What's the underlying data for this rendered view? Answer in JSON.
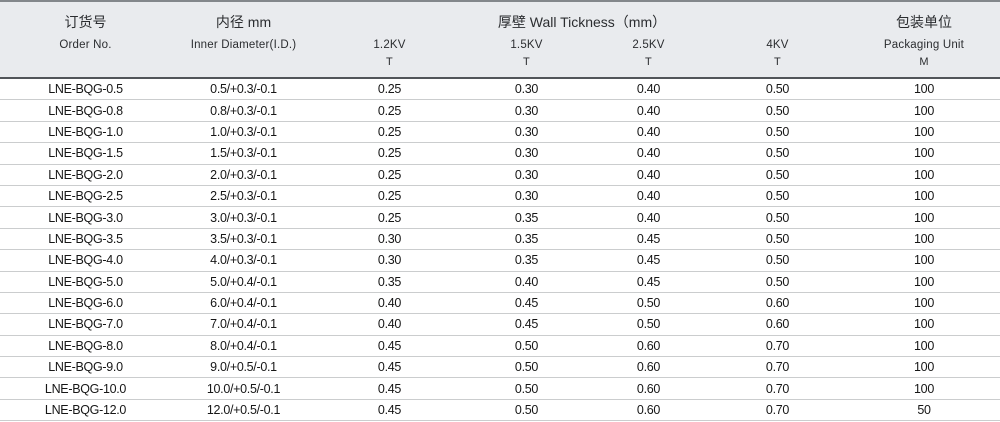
{
  "colors": {
    "page_background": "#ffffff",
    "header_background": "#e9ebee",
    "top_rule": "#83878b",
    "header_bottom_rule": "#515559",
    "row_rule": "#cbcdce",
    "header_text": "#2b2d30",
    "body_text": "#161616"
  },
  "chart_data": {
    "type": "table",
    "header": {
      "order": {
        "zh": "订货号",
        "en": "Order No."
      },
      "inner_diameter": {
        "zh": "内径 mm",
        "en": "Inner Diameter(I.D.)"
      },
      "wall_thickness_group": "厚壁 Wall Tickness（mm）",
      "kv": [
        "1.2KV",
        "1.5KV",
        "2.5KV",
        "4KV"
      ],
      "kv_sub": "T",
      "packaging": {
        "zh": "包装单位",
        "en": "Packaging Unit",
        "unit": "M"
      }
    },
    "rows": [
      {
        "order": "LNE-BQG-0.5",
        "inner_diameter": "0.5/+0.3/-0.1",
        "t_1_2kv": "0.25",
        "t_1_5kv": "0.30",
        "t_2_5kv": "0.40",
        "t_4kv": "0.50",
        "packaging_m": "100"
      },
      {
        "order": "LNE-BQG-0.8",
        "inner_diameter": "0.8/+0.3/-0.1",
        "t_1_2kv": "0.25",
        "t_1_5kv": "0.30",
        "t_2_5kv": "0.40",
        "t_4kv": "0.50",
        "packaging_m": "100"
      },
      {
        "order": "LNE-BQG-1.0",
        "inner_diameter": "1.0/+0.3/-0.1",
        "t_1_2kv": "0.25",
        "t_1_5kv": "0.30",
        "t_2_5kv": "0.40",
        "t_4kv": "0.50",
        "packaging_m": "100"
      },
      {
        "order": "LNE-BQG-1.5",
        "inner_diameter": "1.5/+0.3/-0.1",
        "t_1_2kv": "0.25",
        "t_1_5kv": "0.30",
        "t_2_5kv": "0.40",
        "t_4kv": "0.50",
        "packaging_m": "100"
      },
      {
        "order": "LNE-BQG-2.0",
        "inner_diameter": "2.0/+0.3/-0.1",
        "t_1_2kv": "0.25",
        "t_1_5kv": "0.30",
        "t_2_5kv": "0.40",
        "t_4kv": "0.50",
        "packaging_m": "100"
      },
      {
        "order": "LNE-BQG-2.5",
        "inner_diameter": "2.5/+0.3/-0.1",
        "t_1_2kv": "0.25",
        "t_1_5kv": "0.30",
        "t_2_5kv": "0.40",
        "t_4kv": "0.50",
        "packaging_m": "100"
      },
      {
        "order": "LNE-BQG-3.0",
        "inner_diameter": "3.0/+0.3/-0.1",
        "t_1_2kv": "0.25",
        "t_1_5kv": "0.35",
        "t_2_5kv": "0.40",
        "t_4kv": "0.50",
        "packaging_m": "100"
      },
      {
        "order": "LNE-BQG-3.5",
        "inner_diameter": "3.5/+0.3/-0.1",
        "t_1_2kv": "0.30",
        "t_1_5kv": "0.35",
        "t_2_5kv": "0.45",
        "t_4kv": "0.50",
        "packaging_m": "100"
      },
      {
        "order": "LNE-BQG-4.0",
        "inner_diameter": "4.0/+0.3/-0.1",
        "t_1_2kv": "0.30",
        "t_1_5kv": "0.35",
        "t_2_5kv": "0.45",
        "t_4kv": "0.50",
        "packaging_m": "100"
      },
      {
        "order": "LNE-BQG-5.0",
        "inner_diameter": "5.0/+0.4/-0.1",
        "t_1_2kv": "0.35",
        "t_1_5kv": "0.40",
        "t_2_5kv": "0.45",
        "t_4kv": "0.50",
        "packaging_m": "100"
      },
      {
        "order": "LNE-BQG-6.0",
        "inner_diameter": "6.0/+0.4/-0.1",
        "t_1_2kv": "0.40",
        "t_1_5kv": "0.45",
        "t_2_5kv": "0.50",
        "t_4kv": "0.60",
        "packaging_m": "100"
      },
      {
        "order": "LNE-BQG-7.0",
        "inner_diameter": "7.0/+0.4/-0.1",
        "t_1_2kv": "0.40",
        "t_1_5kv": "0.45",
        "t_2_5kv": "0.50",
        "t_4kv": "0.60",
        "packaging_m": "100"
      },
      {
        "order": "LNE-BQG-8.0",
        "inner_diameter": "8.0/+0.4/-0.1",
        "t_1_2kv": "0.45",
        "t_1_5kv": "0.50",
        "t_2_5kv": "0.60",
        "t_4kv": "0.70",
        "packaging_m": "100"
      },
      {
        "order": "LNE-BQG-9.0",
        "inner_diameter": "9.0/+0.5/-0.1",
        "t_1_2kv": "0.45",
        "t_1_5kv": "0.50",
        "t_2_5kv": "0.60",
        "t_4kv": "0.70",
        "packaging_m": "100"
      },
      {
        "order": "LNE-BQG-10.0",
        "inner_diameter": "10.0/+0.5/-0.1",
        "t_1_2kv": "0.45",
        "t_1_5kv": "0.50",
        "t_2_5kv": "0.60",
        "t_4kv": "0.70",
        "packaging_m": "100"
      },
      {
        "order": "LNE-BQG-12.0",
        "inner_diameter": "12.0/+0.5/-0.1",
        "t_1_2kv": "0.45",
        "t_1_5kv": "0.50",
        "t_2_5kv": "0.60",
        "t_4kv": "0.70",
        "packaging_m": "50"
      }
    ]
  }
}
